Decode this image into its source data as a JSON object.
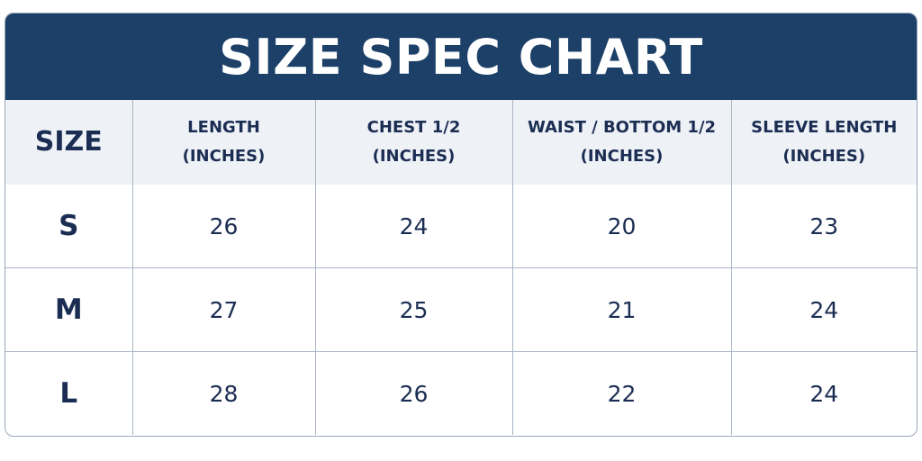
{
  "title": "SIZE SPEC CHART",
  "table": {
    "columns": [
      {
        "label": "SIZE"
      },
      {
        "label": "LENGTH",
        "unit": "(INCHES)"
      },
      {
        "label": "CHEST 1/2",
        "unit": "(INCHES)"
      },
      {
        "label": "WAIST / BOTTOM 1/2",
        "unit": "(INCHES)"
      },
      {
        "label": "SLEEVE LENGTH",
        "unit": "(INCHES)"
      }
    ],
    "rows": [
      [
        "S",
        26,
        24,
        20,
        23
      ],
      [
        "M",
        27,
        25,
        21,
        24
      ],
      [
        "L",
        28,
        26,
        22,
        24
      ]
    ]
  }
}
